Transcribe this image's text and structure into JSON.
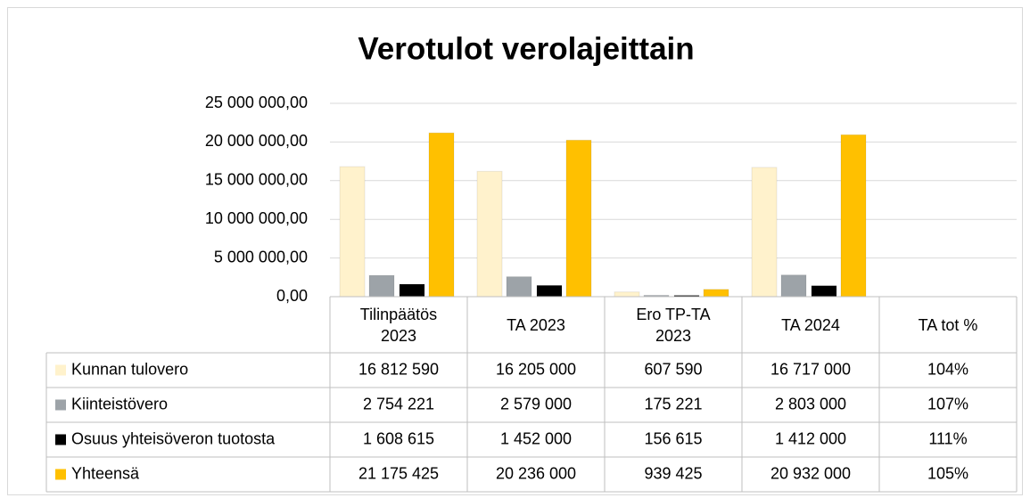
{
  "chart_data": {
    "type": "bar",
    "title": "Verotulot verolajeittain",
    "categories": [
      "Tilinpäätös 2023",
      "TA 2023",
      "Ero TP-TA 2023",
      "TA 2024",
      "TA tot %"
    ],
    "series": [
      {
        "name": "Kunnan tulovero",
        "color": "#FFF2CC",
        "values": [
          16812590,
          16205000,
          607590,
          16717000,
          1.04
        ],
        "value_labels": [
          "16 812 590",
          "16 205 000",
          "607 590",
          "16 717 000",
          "104%"
        ]
      },
      {
        "name": "Kiinteistövero",
        "color": "#9DA3A8",
        "values": [
          2754221,
          2579000,
          175221,
          2803000,
          1.07
        ],
        "value_labels": [
          "2 754 221",
          "2 579 000",
          "175 221",
          "2 803 000",
          "107%"
        ]
      },
      {
        "name": "Osuus yhteisöveron tuotosta",
        "color": "#000000",
        "values": [
          1608615,
          1452000,
          156615,
          1412000,
          1.11
        ],
        "value_labels": [
          "1 608 615",
          "1 452 000",
          "156 615",
          "1 412 000",
          "111%"
        ]
      },
      {
        "name": "Yhteensä",
        "color": "#FFC000",
        "values": [
          21175425,
          20236000,
          939425,
          20932000,
          1.05
        ],
        "value_labels": [
          "21 175 425",
          "20 236 000",
          "939 425",
          "20 932 000",
          "105%"
        ]
      }
    ],
    "ylim": [
      0,
      25000000
    ],
    "yticks": [
      {
        "value": 0,
        "label": "0,00"
      },
      {
        "value": 5000000,
        "label": "5 000 000,00"
      },
      {
        "value": 10000000,
        "label": "10 000 000,00"
      },
      {
        "value": 15000000,
        "label": "15 000 000,00"
      },
      {
        "value": 20000000,
        "label": "20 000 000,00"
      },
      {
        "value": 25000000,
        "label": "25 000 000,00"
      }
    ],
    "grid": true
  }
}
